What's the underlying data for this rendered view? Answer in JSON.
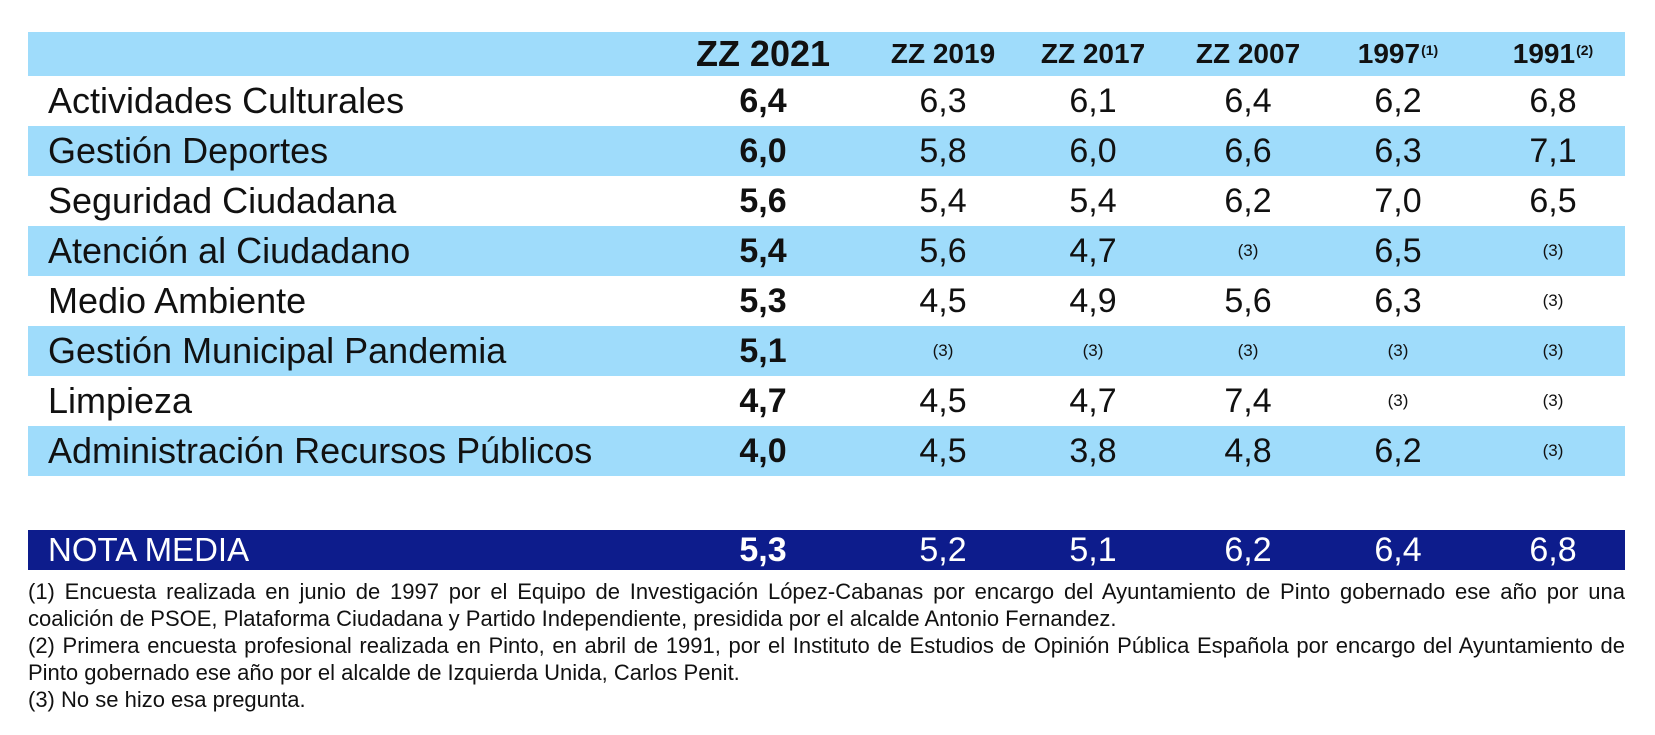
{
  "chart_data": {
    "type": "table",
    "columns": [
      {
        "label": "ZZ 2021",
        "sup": ""
      },
      {
        "label": "ZZ 2019",
        "sup": ""
      },
      {
        "label": "ZZ 2017",
        "sup": ""
      },
      {
        "label": "ZZ 2007",
        "sup": ""
      },
      {
        "label": "1997",
        "sup": "(1)"
      },
      {
        "label": "1991",
        "sup": "(2)"
      }
    ],
    "rows": [
      {
        "label": "Actividades Culturales",
        "values": [
          "6,4",
          "6,3",
          "6,1",
          "6,4",
          "6,2",
          "6,8"
        ]
      },
      {
        "label": "Gestión Deportes",
        "values": [
          "6,0",
          "5,8",
          "6,0",
          "6,6",
          "6,3",
          "7,1"
        ]
      },
      {
        "label": "Seguridad Ciudadana",
        "values": [
          "5,6",
          "5,4",
          "5,4",
          "6,2",
          "7,0",
          "6,5"
        ]
      },
      {
        "label": "Atención al Ciudadano",
        "values": [
          "5,4",
          "5,6",
          "4,7",
          "(3)",
          "6,5",
          "(3)"
        ]
      },
      {
        "label": "Medio Ambiente",
        "values": [
          "5,3",
          "4,5",
          "4,9",
          "5,6",
          "6,3",
          "(3)"
        ]
      },
      {
        "label": "Gestión Municipal Pandemia",
        "values": [
          "5,1",
          "(3)",
          "(3)",
          "(3)",
          "(3)",
          "(3)"
        ]
      },
      {
        "label": "Limpieza",
        "values": [
          "4,7",
          "4,5",
          "4,7",
          "7,4",
          "(3)",
          "(3)"
        ]
      },
      {
        "label": "Administración Recursos Públicos",
        "values": [
          "4,0",
          "4,5",
          "3,8",
          "4,8",
          "6,2",
          "(3)"
        ]
      }
    ],
    "summary": {
      "label": "NOTA MEDIA",
      "values": [
        "5,3",
        "5,2",
        "5,1",
        "6,2",
        "6,4",
        "6,8"
      ]
    },
    "footnotes": [
      "(1) Encuesta realizada en junio de 1997 por el Equipo de Investigación López-Cabanas por encargo del Ayuntamiento de Pinto gobernado ese año por una coalición de PSOE, Plataforma Ciudadana y Partido Independiente, presidida por el alcalde Antonio Fernandez.",
      "(2) Primera encuesta profesional realizada en Pinto, en abril de 1991, por el Instituto de Estudios de Opinión Pública Española por encargo del Ayuntamiento de Pinto gobernado ese año por el alcalde de Izquierda Unida, Carlos Penit.",
      "(3) No se hizo esa pregunta."
    ]
  },
  "colors": {
    "row_blue": "#9fdcfb",
    "summary_bg": "#0d1c8c",
    "summary_text": "#ffffff"
  }
}
